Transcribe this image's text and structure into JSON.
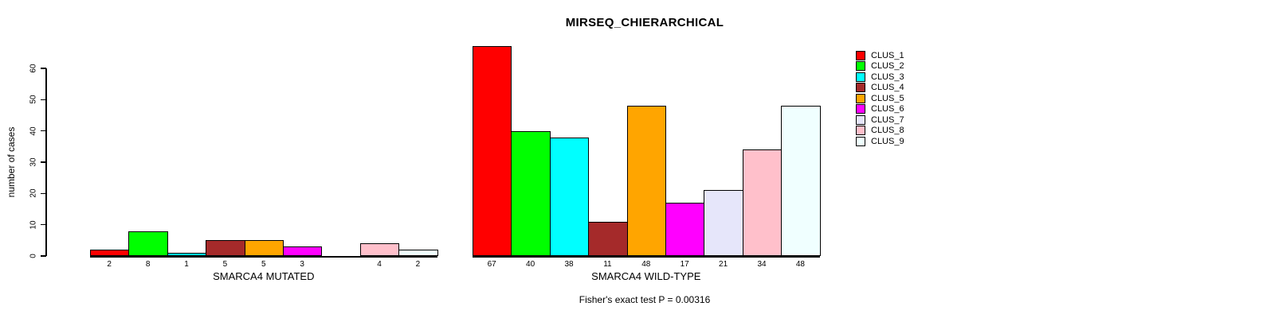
{
  "chart_data": {
    "type": "bar",
    "title": "MIRSEQ_CHIERARCHICAL",
    "xlabel": "",
    "ylabel": "number of cases",
    "ylim": [
      0,
      60
    ],
    "yticks": [
      0,
      10,
      20,
      30,
      40,
      50,
      60
    ],
    "grid": false,
    "legend_position": "right",
    "categories": [
      "CLUS_1",
      "CLUS_2",
      "CLUS_3",
      "CLUS_4",
      "CLUS_5",
      "CLUS_6",
      "CLUS_7",
      "CLUS_8",
      "CLUS_9"
    ],
    "colors": [
      "#FF0000",
      "#00FF00",
      "#00FFFF",
      "#A52A2A",
      "#FFA500",
      "#FF00FF",
      "#E6E6FA",
      "#FFC0CB",
      "#F0FFFF"
    ],
    "series": [
      {
        "name": "SMARCA4 MUTATED",
        "values": [
          2,
          8,
          1,
          5,
          5,
          3,
          0,
          4,
          2
        ]
      },
      {
        "name": "SMARCA4 WILD-TYPE",
        "values": [
          67,
          40,
          38,
          11,
          48,
          17,
          21,
          34,
          48
        ]
      }
    ],
    "bar_labels_shown": true,
    "annotation": "Fisher's exact test P = 0.00316"
  }
}
